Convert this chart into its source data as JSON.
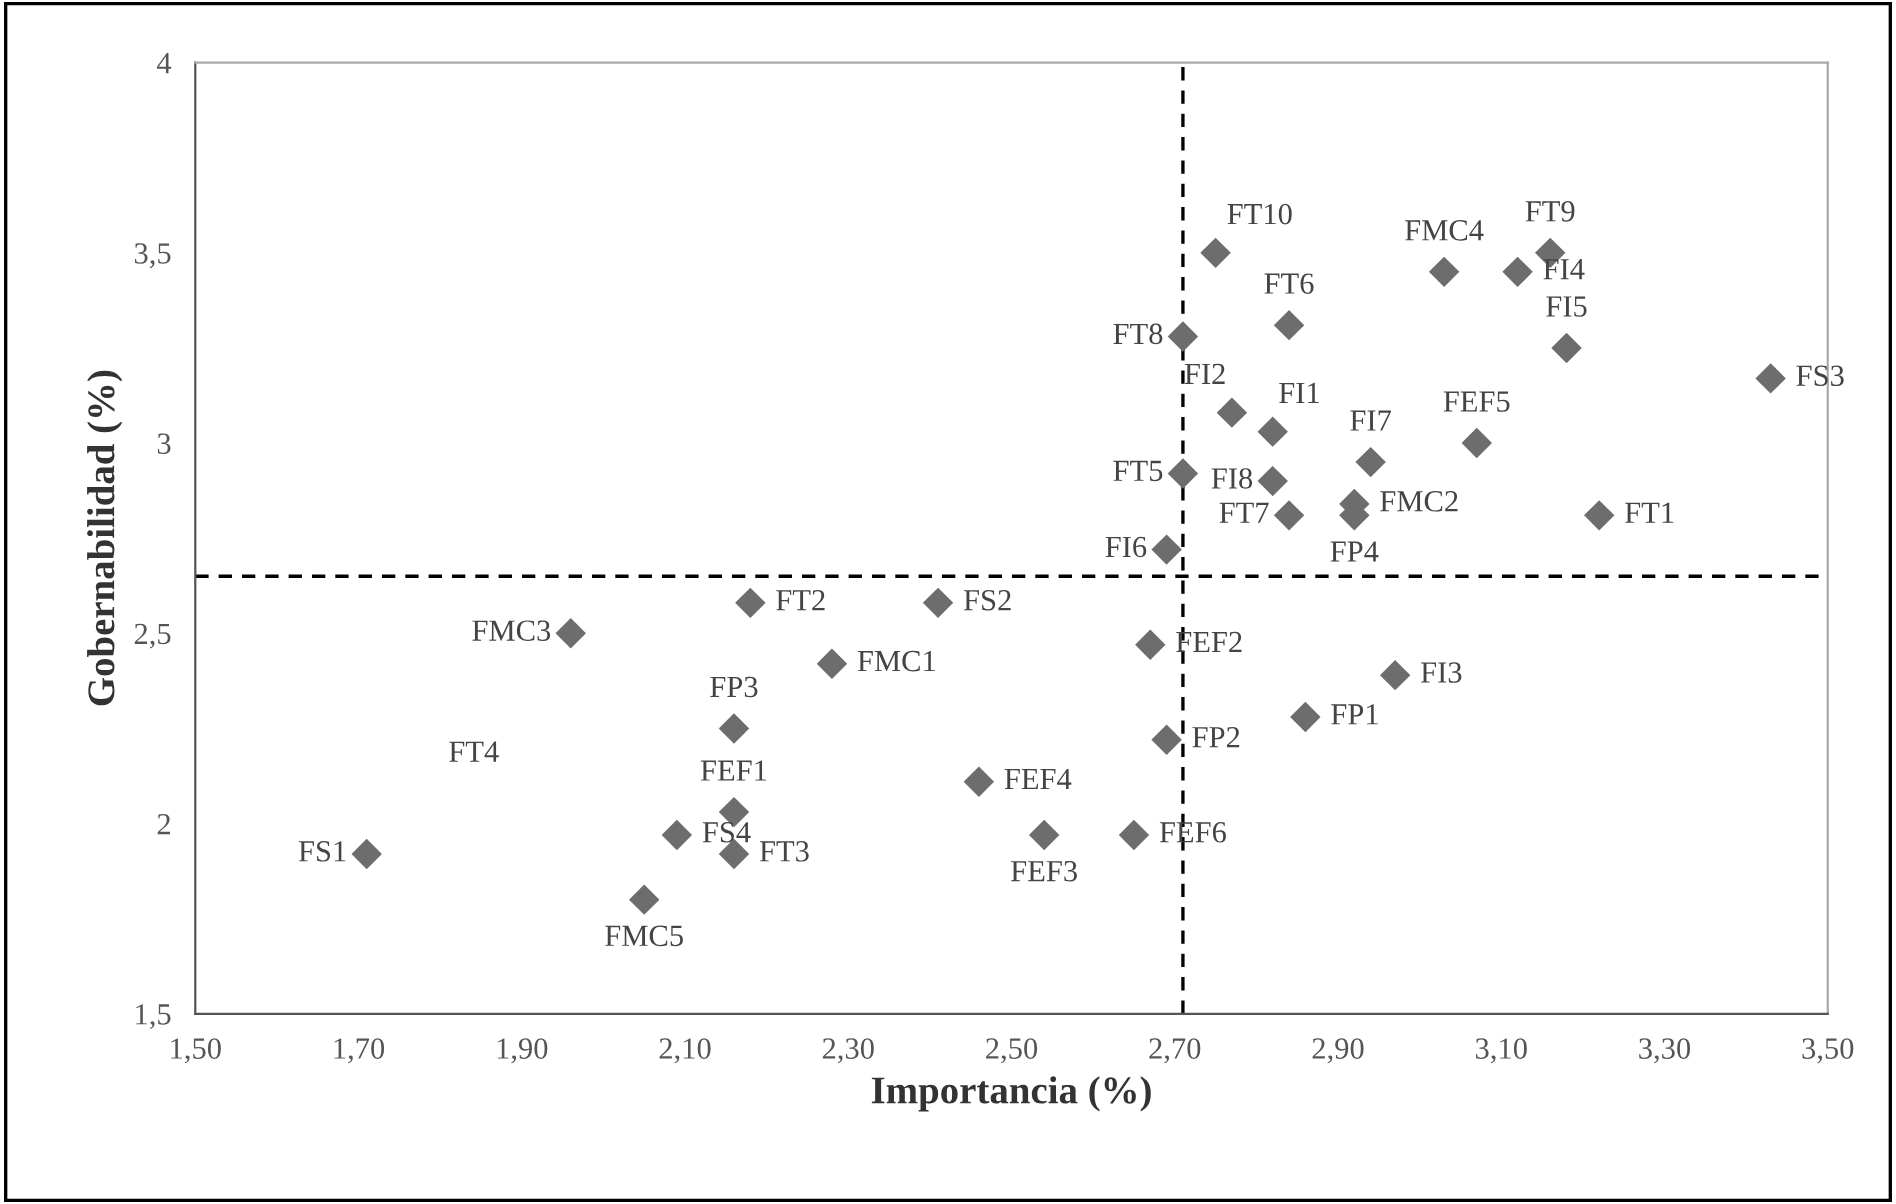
{
  "chart_data": {
    "type": "scatter",
    "xlabel": "Importancia (%)",
    "ylabel": "Gobernabilidad (%)",
    "xlim": [
      1.5,
      3.5
    ],
    "ylim": [
      1.5,
      4
    ],
    "xticks": [
      {
        "value": 1.5,
        "label": "1,50"
      },
      {
        "value": 1.7,
        "label": "1,70"
      },
      {
        "value": 1.9,
        "label": "1,90"
      },
      {
        "value": 2.1,
        "label": "2,10"
      },
      {
        "value": 2.3,
        "label": "2,30"
      },
      {
        "value": 2.5,
        "label": "2,50"
      },
      {
        "value": 2.7,
        "label": "2,70"
      },
      {
        "value": 2.9,
        "label": "2,90"
      },
      {
        "value": 3.1,
        "label": "3,10"
      },
      {
        "value": 3.3,
        "label": "3,30"
      },
      {
        "value": 3.5,
        "label": "3,50"
      }
    ],
    "yticks": [
      {
        "value": 1.5,
        "label": "1,5"
      },
      2,
      {
        "value": 2.5,
        "label": "2,5"
      },
      3,
      {
        "value": 3.5,
        "label": "3,5"
      },
      4
    ],
    "grid": false,
    "legend": false,
    "marker": "diamond",
    "ref_lines": [
      {
        "axis": "x",
        "value": 2.71,
        "color": "#000000",
        "line_style": "dashed"
      },
      {
        "axis": "y",
        "value": 2.65,
        "color": "#000000",
        "line_style": "dashed"
      }
    ],
    "annotations": [
      "FT4"
    ],
    "series": [
      {
        "color": "#6d6d6d",
        "x": [
          2.75,
          3.03,
          3.12,
          3.16,
          2.84,
          2.71,
          3.18,
          3.43,
          2.77,
          2.82,
          3.07,
          2.94,
          2.71,
          2.82,
          2.92,
          2.92,
          2.84,
          3.22,
          2.69,
          2.67,
          2.97,
          2.86,
          2.69,
          2.65,
          2.18,
          2.41,
          1.96,
          2.28,
          2.16,
          2.46,
          2.16,
          2.09,
          2.16,
          2.54,
          1.71,
          2.05
        ],
        "values": [
          3.5,
          3.45,
          3.45,
          3.5,
          3.31,
          3.28,
          3.25,
          3.17,
          3.08,
          3.03,
          3.0,
          2.95,
          2.92,
          2.9,
          2.84,
          2.81,
          2.81,
          2.81,
          2.72,
          2.47,
          2.39,
          2.28,
          2.22,
          1.97,
          2.58,
          2.58,
          2.5,
          2.42,
          2.25,
          2.11,
          2.03,
          1.97,
          1.92,
          1.97,
          1.92,
          1.8
        ],
        "value_labels": [
          "FT10",
          "FMC4",
          "FI4",
          "FT9",
          "FT6",
          "FT8",
          "FI5",
          "FS3",
          "FI2",
          "FI1",
          "FEF5",
          "FI7",
          "FT5",
          "FI8",
          "FMC2",
          "FP4",
          "FT7",
          "FT1",
          "FI6",
          "FEF2",
          "FI3",
          "FP1",
          "FP2",
          "FEF6",
          "FT2",
          "FS2",
          "FMC3",
          "FMC1",
          "FP3",
          "FEF4",
          "FEF1",
          "FS4",
          "FT3",
          "FEF3",
          "FS1",
          "FMC5"
        ]
      }
    ]
  }
}
